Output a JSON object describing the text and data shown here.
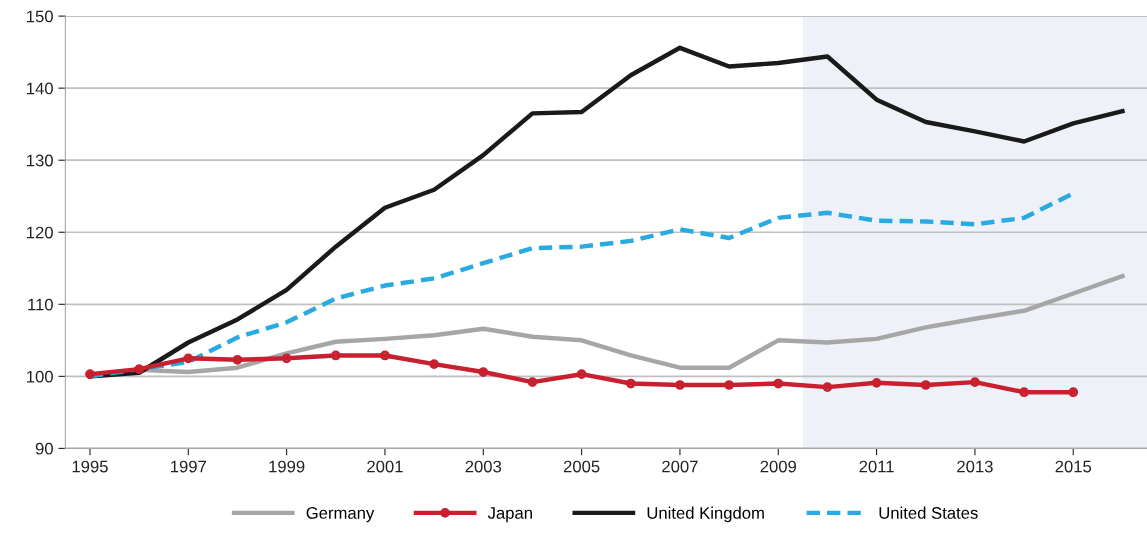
{
  "chart_data": {
    "type": "line",
    "x": [
      1995,
      1996,
      1997,
      1998,
      1999,
      2000,
      2001,
      2002,
      2003,
      2004,
      2005,
      2006,
      2007,
      2008,
      2009,
      2010,
      2011,
      2012,
      2013,
      2014,
      2015,
      2016
    ],
    "xlim": [
      1994.5,
      2016.5
    ],
    "xticks": [
      1995,
      1997,
      1999,
      2001,
      2003,
      2005,
      2007,
      2009,
      2011,
      2013,
      2015
    ],
    "ylim": [
      90,
      150
    ],
    "yticks": [
      90,
      100,
      110,
      120,
      130,
      140,
      150
    ],
    "grid": "y",
    "legend": "bottom",
    "bands": [
      {
        "axis": "x",
        "from": 2009.5,
        "to": 2016.5,
        "color": "#eef1f8"
      }
    ],
    "series": [
      {
        "name": "Germany",
        "color": "#a6a6a6",
        "line_style": "solid",
        "marker": "none",
        "values": [
          100,
          100.9,
          100.6,
          101.2,
          103.2,
          104.8,
          105.2,
          105.7,
          106.6,
          105.5,
          105,
          102.9,
          101.2,
          101.2,
          105,
          104.7,
          105.2,
          106.8,
          108,
          109.1,
          111.5,
          113.9
        ]
      },
      {
        "name": "Japan",
        "color": "#c8202f",
        "line_style": "solid",
        "marker": "circle",
        "values": [
          100.3,
          101,
          102.5,
          102.3,
          102.5,
          102.9,
          102.9,
          101.7,
          100.6,
          99.2,
          100.3,
          99,
          98.8,
          98.8,
          99,
          98.5,
          99.1,
          98.8,
          99.2,
          97.8,
          97.8,
          null
        ]
      },
      {
        "name": "United Kingdom",
        "color": "#1a1a1a",
        "line_style": "solid",
        "marker": "none",
        "values": [
          100,
          100.5,
          104.7,
          107.9,
          112,
          118,
          123.4,
          125.9,
          130.7,
          136.5,
          136.7,
          141.8,
          145.6,
          143,
          143.5,
          144.4,
          138.4,
          135.3,
          134,
          132.6,
          135.1,
          136.8
        ]
      },
      {
        "name": "United States",
        "color": "#29abe2",
        "line_style": "dashed",
        "marker": "none",
        "values": [
          100,
          101,
          102,
          105.4,
          107.5,
          110.8,
          112.6,
          113.6,
          115.7,
          117.8,
          118,
          118.8,
          120.4,
          119.2,
          122,
          122.7,
          121.6,
          121.5,
          121.1,
          122,
          125.4,
          null
        ]
      }
    ]
  }
}
